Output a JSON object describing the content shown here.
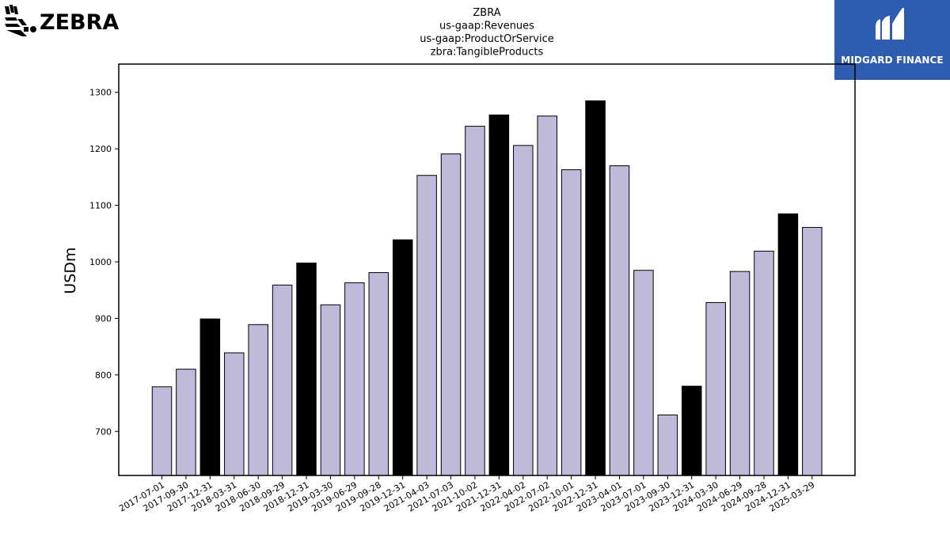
{
  "logos": {
    "left_text": "ZEBRA",
    "right_text": "MIDGARD FINANCE"
  },
  "chart_data": {
    "type": "bar",
    "title_lines": [
      "ZBRA",
      "us-gaap:Revenues",
      "us-gaap:ProductOrService",
      "zbra:TangibleProducts"
    ],
    "xlabel": "",
    "ylabel": "USDm",
    "ylim": [
      622,
      1350
    ],
    "yticks": [
      700,
      800,
      900,
      1000,
      1100,
      1200,
      1300
    ],
    "categories": [
      "2017-07-01",
      "2017-09-30",
      "2017-12-31",
      "2018-03-31",
      "2018-06-30",
      "2018-09-29",
      "2018-12-31",
      "2019-03-30",
      "2019-06-29",
      "2019-09-28",
      "2019-12-31",
      "2021-04-03",
      "2021-07-03",
      "2021-10-02",
      "2021-12-31",
      "2022-04-02",
      "2022-07-02",
      "2022-10-01",
      "2022-12-31",
      "2023-04-01",
      "2023-07-01",
      "2023-09-30",
      "2023-12-31",
      "2024-03-30",
      "2024-06-29",
      "2024-09-28",
      "2024-12-31",
      "2025-03-29"
    ],
    "values": [
      779,
      810,
      899,
      839,
      889,
      959,
      998,
      924,
      963,
      981,
      1039,
      1153,
      1191,
      1240,
      1260,
      1206,
      1258,
      1163,
      1285,
      1170,
      985,
      729,
      780,
      928,
      983,
      1019,
      1085,
      1061
    ],
    "highlight": [
      false,
      false,
      true,
      false,
      false,
      false,
      true,
      false,
      false,
      false,
      true,
      false,
      false,
      false,
      true,
      false,
      false,
      false,
      true,
      false,
      false,
      false,
      true,
      false,
      false,
      false,
      true,
      false
    ],
    "colors": {
      "bar": "#bebada",
      "highlight": "#000000",
      "edge": "#000000"
    },
    "grid": false,
    "legend": "none"
  }
}
